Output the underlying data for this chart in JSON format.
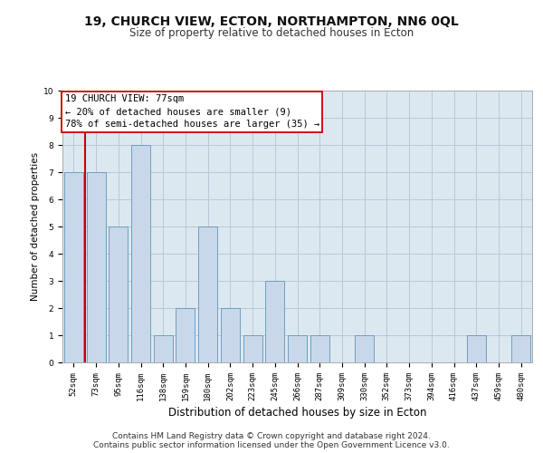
{
  "title": "19, CHURCH VIEW, ECTON, NORTHAMPTON, NN6 0QL",
  "subtitle": "Size of property relative to detached houses in Ecton",
  "xlabel": "Distribution of detached houses by size in Ecton",
  "ylabel": "Number of detached properties",
  "categories": [
    "52sqm",
    "73sqm",
    "95sqm",
    "116sqm",
    "138sqm",
    "159sqm",
    "180sqm",
    "202sqm",
    "223sqm",
    "245sqm",
    "266sqm",
    "287sqm",
    "309sqm",
    "330sqm",
    "352sqm",
    "373sqm",
    "394sqm",
    "416sqm",
    "437sqm",
    "459sqm",
    "480sqm"
  ],
  "values": [
    7,
    7,
    5,
    8,
    1,
    2,
    5,
    2,
    1,
    3,
    1,
    1,
    0,
    1,
    0,
    0,
    0,
    0,
    1,
    0,
    1
  ],
  "bar_color": "#c8d8ea",
  "bar_edge_color": "#6e9ec0",
  "vline_color": "#cc0000",
  "vline_x_index": 1,
  "annotation_title": "19 CHURCH VIEW: 77sqm",
  "annotation_line1": "← 20% of detached houses are smaller (9)",
  "annotation_line2": "78% of semi-detached houses are larger (35) →",
  "annotation_box_facecolor": "#ffffff",
  "annotation_box_edgecolor": "#cc0000",
  "ylim": [
    0,
    10
  ],
  "yticks": [
    0,
    1,
    2,
    3,
    4,
    5,
    6,
    7,
    8,
    9,
    10
  ],
  "grid_color": "#b8c8d8",
  "bg_color": "#dce8f0",
  "fig_facecolor": "#ffffff",
  "title_fontsize": 10,
  "subtitle_fontsize": 8.5,
  "xlabel_fontsize": 8.5,
  "ylabel_fontsize": 7.5,
  "tick_fontsize": 6.5,
  "annotation_fontsize": 7.5,
  "footer_fontsize": 6.5,
  "footer1": "Contains HM Land Registry data © Crown copyright and database right 2024.",
  "footer2": "Contains public sector information licensed under the Open Government Licence v3.0."
}
